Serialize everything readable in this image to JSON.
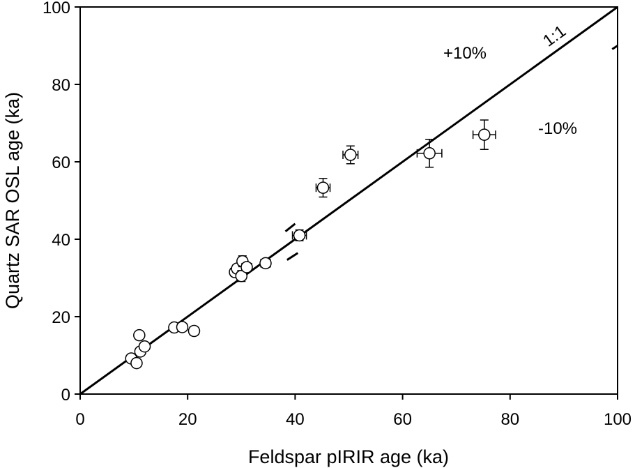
{
  "chart_data": {
    "type": "scatter",
    "xlabel": "Feldspar pIRIR age (ka)",
    "ylabel": "Quartz SAR OSL age (ka)",
    "xlim": [
      0,
      100
    ],
    "ylim": [
      0,
      100
    ],
    "x_ticks": [
      "0",
      "20",
      "40",
      "60",
      "80",
      "100"
    ],
    "y_ticks": [
      "0",
      "20",
      "40",
      "60",
      "80",
      "100"
    ],
    "grid": false,
    "legend": "none",
    "annotations": {
      "one_to_one": "1:1",
      "plus10": "+10%",
      "minus10": "-10%"
    },
    "reference_lines": [
      {
        "name": "1:1",
        "slope": 1.0,
        "style": "solid"
      },
      {
        "name": "+10%",
        "slope": 1.1,
        "style": "dashed"
      },
      {
        "name": "-10%",
        "slope": 0.9,
        "style": "dashed"
      }
    ],
    "points": [
      {
        "x": 9.5,
        "y": 9.2,
        "xerr": 0.5,
        "yerr": 0.5
      },
      {
        "x": 10.5,
        "y": 8.0,
        "xerr": 0.5,
        "yerr": 0.5
      },
      {
        "x": 11.2,
        "y": 11.0,
        "xerr": 0.5,
        "yerr": 0.5
      },
      {
        "x": 11.0,
        "y": 15.2,
        "xerr": 0.5,
        "yerr": 0.5
      },
      {
        "x": 12.0,
        "y": 12.3,
        "xerr": 0.5,
        "yerr": 0.5
      },
      {
        "x": 17.5,
        "y": 17.2,
        "xerr": 0.7,
        "yerr": 0.7
      },
      {
        "x": 19.0,
        "y": 17.3,
        "xerr": 0.8,
        "yerr": 0.7
      },
      {
        "x": 21.2,
        "y": 16.3,
        "xerr": 0.8,
        "yerr": 0.8
      },
      {
        "x": 28.8,
        "y": 31.5,
        "xerr": 0.8,
        "yerr": 1.0
      },
      {
        "x": 29.2,
        "y": 32.4,
        "xerr": 0.8,
        "yerr": 1.0
      },
      {
        "x": 30.0,
        "y": 30.5,
        "xerr": 0.8,
        "yerr": 1.4
      },
      {
        "x": 30.2,
        "y": 34.3,
        "xerr": 0.8,
        "yerr": 1.4
      },
      {
        "x": 31.0,
        "y": 32.8,
        "xerr": 0.9,
        "yerr": 1.0
      },
      {
        "x": 34.5,
        "y": 33.8,
        "xerr": 0.9,
        "yerr": 1.0
      },
      {
        "x": 40.8,
        "y": 41.0,
        "xerr": 1.3,
        "yerr": 1.4
      },
      {
        "x": 45.2,
        "y": 53.3,
        "xerr": 1.3,
        "yerr": 2.4
      },
      {
        "x": 50.3,
        "y": 61.8,
        "xerr": 1.4,
        "yerr": 2.3
      },
      {
        "x": 65.0,
        "y": 62.2,
        "xerr": 2.3,
        "yerr": 3.6
      },
      {
        "x": 75.2,
        "y": 67.0,
        "xerr": 2.1,
        "yerr": 3.8
      }
    ]
  }
}
